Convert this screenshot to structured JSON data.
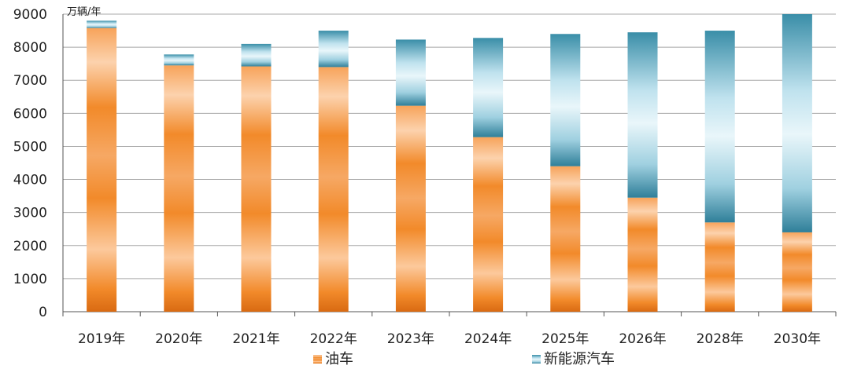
{
  "chart_data": {
    "type": "bar",
    "stacked": true,
    "title": "",
    "xlabel": "",
    "ylabel": "",
    "unit": "万辆/年",
    "categories": [
      "2019年",
      "2020年",
      "2021年",
      "2022年",
      "2023年",
      "2024年",
      "2025年",
      "2026年",
      "2028年",
      "2030年"
    ],
    "series": [
      {
        "name": "油车",
        "color": "#f28a2a",
        "values": [
          8580,
          7450,
          7420,
          7400,
          6230,
          5280,
          4400,
          3450,
          2700,
          2400
        ]
      },
      {
        "name": "新能源汽车",
        "color": "#5fb0c8",
        "values": [
          220,
          330,
          680,
          1100,
          2000,
          3000,
          4000,
          5000,
          5800,
          6600
        ]
      }
    ],
    "ylim": [
      0,
      9000
    ],
    "yticks": [
      0,
      1000,
      2000,
      3000,
      4000,
      5000,
      6000,
      7000,
      8000,
      9000
    ],
    "grid": true,
    "legend_position": "bottom"
  }
}
